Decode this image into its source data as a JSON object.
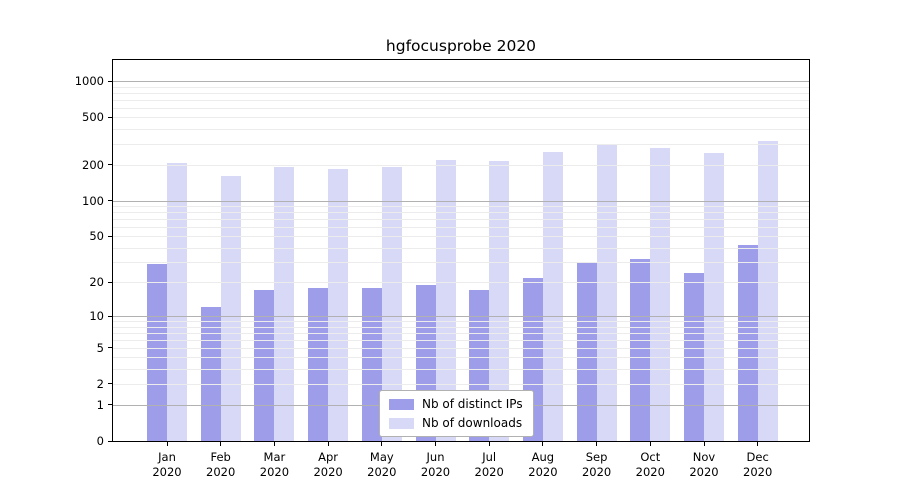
{
  "chart_data": {
    "type": "bar",
    "title": "hgfocusprobe 2020",
    "categories": [
      "Jan",
      "Feb",
      "Mar",
      "Apr",
      "May",
      "Jun",
      "Jul",
      "Aug",
      "Sep",
      "Oct",
      "Nov",
      "Dec"
    ],
    "x_year_label": "2020",
    "series": [
      {
        "name": "Nb of distinct IPs",
        "color": "#9d9de9",
        "values": [
          29,
          12,
          17,
          18,
          18,
          19,
          17,
          22,
          30,
          32,
          24,
          42
        ]
      },
      {
        "name": "Nb of downloads",
        "color": "#d8d8f7",
        "values": [
          206,
          162,
          192,
          183,
          190,
          221,
          216,
          254,
          298,
          274,
          252,
          316
        ]
      }
    ],
    "y_axis": {
      "scale": "log10(1+x)",
      "tick_values": [
        1000,
        500,
        200,
        100,
        50,
        20,
        10,
        5,
        2,
        1,
        0
      ],
      "tick_labels": [
        "1000",
        "500",
        "200",
        "100",
        "50",
        "20",
        "10",
        "5",
        "2",
        "1",
        "0"
      ],
      "major_gridlines": [
        1,
        10,
        100,
        1000
      ],
      "minor_gridlines": [
        2,
        3,
        4,
        5,
        6,
        7,
        8,
        9,
        20,
        30,
        40,
        50,
        60,
        70,
        80,
        90,
        200,
        300,
        400,
        500,
        600,
        700,
        800,
        900
      ],
      "ylim": [
        0,
        1500
      ]
    },
    "xlabel": "",
    "ylabel": "",
    "legend": {
      "position": "lower center"
    },
    "grid": "on",
    "colors": {
      "major_grid": "#b1b1b1",
      "minor_grid": "#ececec",
      "axis": "#000000",
      "background": "#ffffff"
    }
  }
}
